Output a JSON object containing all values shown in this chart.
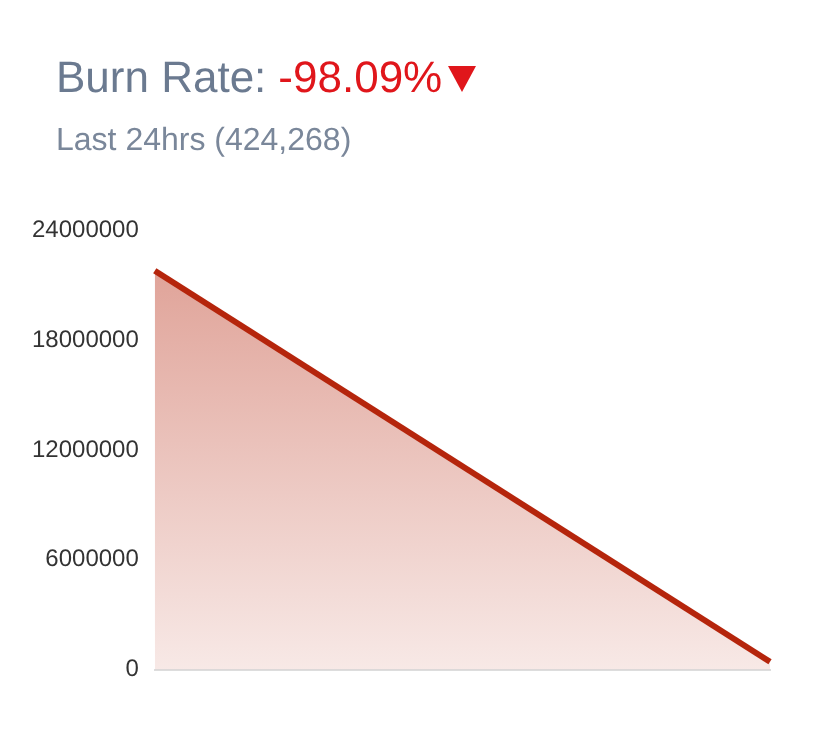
{
  "chart_data": {
    "type": "area",
    "title": "Burn Rate:",
    "annotations": [
      "-98.09%"
    ],
    "subtitle": "Last 24hrs (424,268)",
    "categories": [
      null,
      null
    ],
    "series": [
      {
        "color": "#b5250c",
        "values": [
          21800000,
          424268
        ]
      }
    ],
    "ylim": [
      0,
      24000000
    ],
    "yticks": [
      0,
      6000000,
      12000000,
      18000000,
      24000000
    ],
    "grid": false,
    "tick_labels": "y",
    "legend": false
  }
}
